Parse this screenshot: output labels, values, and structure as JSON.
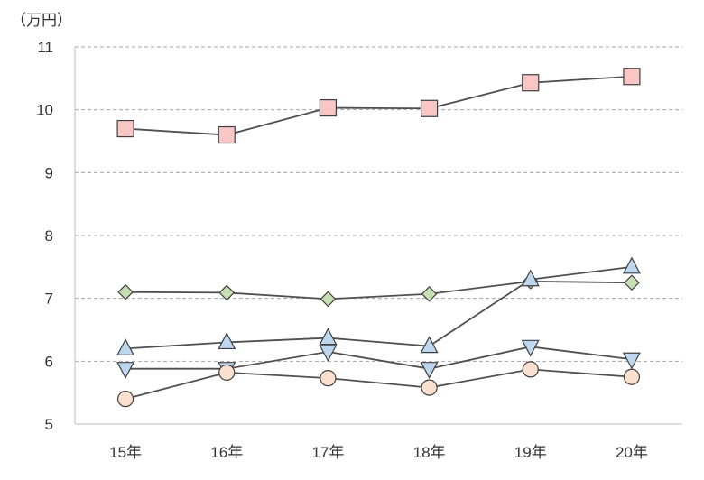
{
  "chart_data": {
    "type": "line",
    "unit_label": "（万円）",
    "categories": [
      "15年",
      "16年",
      "17年",
      "18年",
      "19年",
      "20年"
    ],
    "ylim": [
      5,
      11
    ],
    "yticks": [
      5,
      6,
      7,
      8,
      9,
      10,
      11
    ],
    "grid": true,
    "legend": "none",
    "series": [
      {
        "marker": "square",
        "fill": "#F9C6C6",
        "values": [
          9.7,
          9.6,
          10.03,
          10.02,
          10.43,
          10.53
        ]
      },
      {
        "marker": "diamond",
        "fill": "#C6E0B4",
        "values": [
          7.1,
          7.09,
          6.99,
          7.07,
          7.27,
          7.25
        ]
      },
      {
        "marker": "triangle-up",
        "fill": "#BDD7EE",
        "values": [
          6.2,
          6.3,
          6.37,
          6.24,
          7.3,
          7.5
        ]
      },
      {
        "marker": "triangle-down",
        "fill": "#BDD7EE",
        "values": [
          5.88,
          5.88,
          6.15,
          5.88,
          6.23,
          6.03
        ]
      },
      {
        "marker": "circle",
        "fill": "#FBE0D0",
        "values": [
          5.4,
          5.82,
          5.73,
          5.58,
          5.87,
          5.75
        ]
      }
    ],
    "line_color": "#505050",
    "grid_color": "#A6A6A6",
    "axis_color": "#BFBFBF"
  }
}
